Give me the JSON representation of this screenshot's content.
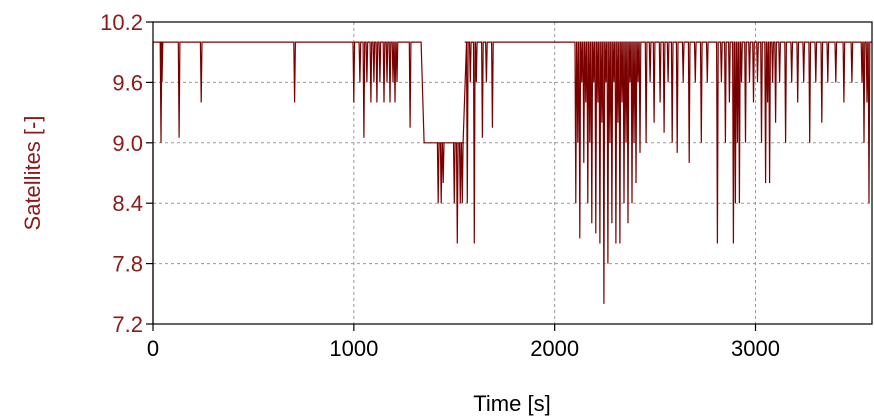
{
  "chart_data": {
    "type": "line",
    "title": "",
    "xlabel": "Time [s]",
    "ylabel": "Satellites [-]",
    "xlim": [
      0,
      3580
    ],
    "ylim": [
      7.2,
      10.2
    ],
    "x_ticks": [
      "0",
      "1000",
      "2000",
      "3000"
    ],
    "y_ticks": [
      "7.2",
      "7.8",
      "8.4",
      "9.0",
      "9.6",
      "10.2"
    ],
    "grid": true,
    "legend": "none",
    "colors": {
      "series": "#7a0000",
      "ylabel": "#8b1a1a",
      "yticks": "#8b1a1a",
      "xticks": "#000000",
      "grid": "#999999"
    },
    "series": [
      {
        "baseline": 10,
        "segments": [
          {
            "x": [
              1335,
              1350,
              1550
            ],
            "y": [
              10,
              9,
              9
            ]
          }
        ],
        "dips": [
          [
            40,
            9
          ],
          [
            45,
            9.6
          ],
          [
            130,
            9.05
          ],
          [
            240,
            9.4
          ],
          [
            705,
            9.4
          ],
          [
            1000,
            9.4
          ],
          [
            1030,
            9.6
          ],
          [
            1050,
            9.05
          ],
          [
            1065,
            9.6
          ],
          [
            1085,
            9.4
          ],
          [
            1100,
            9.6
          ],
          [
            1115,
            9.4
          ],
          [
            1130,
            9.6
          ],
          [
            1150,
            9.4
          ],
          [
            1165,
            9.6
          ],
          [
            1180,
            9.4
          ],
          [
            1195,
            9.6
          ],
          [
            1205,
            9.4
          ],
          [
            1215,
            9.6
          ],
          [
            1280,
            9.15
          ],
          [
            1420,
            8.4
          ],
          [
            1435,
            8.4
          ],
          [
            1445,
            8.6
          ],
          [
            1500,
            8.4
          ],
          [
            1515,
            8.0
          ],
          [
            1530,
            8.4
          ],
          [
            1540,
            8.4
          ],
          [
            1565,
            8.4
          ],
          [
            1580,
            9.6
          ],
          [
            1600,
            8.0
          ],
          [
            1610,
            9.6
          ],
          [
            1640,
            9.05
          ],
          [
            1660,
            9.6
          ],
          [
            1690,
            9.15
          ],
          [
            2105,
            8.4
          ],
          [
            2115,
            9.0
          ],
          [
            2125,
            8.05
          ],
          [
            2135,
            9.6
          ],
          [
            2145,
            8.8
          ],
          [
            2155,
            9.4
          ],
          [
            2165,
            8.4
          ],
          [
            2175,
            9.0
          ],
          [
            2185,
            8.2
          ],
          [
            2195,
            9.6
          ],
          [
            2205,
            8.1
          ],
          [
            2215,
            9.4
          ],
          [
            2225,
            8.0
          ],
          [
            2235,
            9.2
          ],
          [
            2245,
            7.4
          ],
          [
            2255,
            9.6
          ],
          [
            2265,
            7.8
          ],
          [
            2275,
            9.0
          ],
          [
            2285,
            8.2
          ],
          [
            2295,
            9.6
          ],
          [
            2305,
            8.0
          ],
          [
            2315,
            9.2
          ],
          [
            2325,
            8.0
          ],
          [
            2335,
            9.4
          ],
          [
            2345,
            8.4
          ],
          [
            2355,
            9.0
          ],
          [
            2365,
            8.2
          ],
          [
            2375,
            9.6
          ],
          [
            2385,
            8.4
          ],
          [
            2395,
            9.0
          ],
          [
            2405,
            8.6
          ],
          [
            2415,
            9.6
          ],
          [
            2425,
            8.9
          ],
          [
            2455,
            9.0
          ],
          [
            2475,
            9.6
          ],
          [
            2495,
            9.2
          ],
          [
            2525,
            9.4
          ],
          [
            2545,
            9.1
          ],
          [
            2565,
            9.6
          ],
          [
            2585,
            9.0
          ],
          [
            2610,
            8.9
          ],
          [
            2640,
            9.6
          ],
          [
            2670,
            8.8
          ],
          [
            2700,
            9.6
          ],
          [
            2730,
            9.0
          ],
          [
            2760,
            9.6
          ],
          [
            2810,
            8.0
          ],
          [
            2830,
            9.6
          ],
          [
            2850,
            9.0
          ],
          [
            2870,
            9.4
          ],
          [
            2890,
            8.0
          ],
          [
            2900,
            8.4
          ],
          [
            2910,
            9.0
          ],
          [
            2920,
            8.4
          ],
          [
            2930,
            9.6
          ],
          [
            2950,
            9.0
          ],
          [
            2970,
            9.6
          ],
          [
            2990,
            9.4
          ],
          [
            3010,
            9.6
          ],
          [
            3030,
            9.0
          ],
          [
            3050,
            8.6
          ],
          [
            3060,
            9.4
          ],
          [
            3070,
            8.6
          ],
          [
            3085,
            9.6
          ],
          [
            3100,
            9.2
          ],
          [
            3120,
            9.6
          ],
          [
            3150,
            9.0
          ],
          [
            3180,
            9.6
          ],
          [
            3210,
            9.4
          ],
          [
            3240,
            9.6
          ],
          [
            3270,
            9.0
          ],
          [
            3300,
            9.6
          ],
          [
            3330,
            9.2
          ],
          [
            3360,
            9.6
          ],
          [
            3400,
            9.6
          ],
          [
            3440,
            9.4
          ],
          [
            3480,
            9.6
          ],
          [
            3530,
            9.6
          ],
          [
            3540,
            9.0
          ],
          [
            3555,
            9.4
          ],
          [
            3565,
            8.4
          ]
        ]
      }
    ]
  }
}
